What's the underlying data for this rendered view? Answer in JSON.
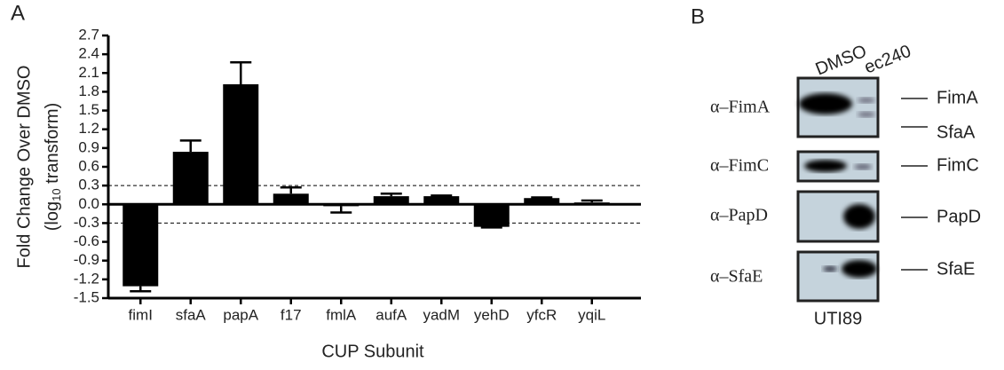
{
  "panel_a_label": "A",
  "chart_data": {
    "type": "bar",
    "y_label": "Fold Change Over  DMSO",
    "y_label_2": [
      "(log",
      "10",
      " transform)"
    ],
    "x_label": "CUP Subunit",
    "categories": [
      "fimI",
      "sfaA",
      "papA",
      "f17",
      "fmlA",
      "aufA",
      "yadM",
      "yehD",
      "yfcR",
      "yqiL"
    ],
    "values": [
      -1.31,
      0.84,
      1.92,
      0.17,
      -0.03,
      0.13,
      0.13,
      -0.36,
      0.1,
      0.03
    ],
    "errors": [
      0.08,
      0.18,
      0.35,
      0.1,
      0.1,
      0.04,
      0.01,
      0.01,
      0.01,
      0.03
    ],
    "color": "#000000",
    "ylim": [
      -1.5,
      2.7
    ],
    "yticks": [
      2.7,
      2.4,
      2.1,
      1.8,
      1.5,
      1.2,
      0.9,
      0.6,
      0.3,
      {
        "value": 0,
        "label": "0.0"
      },
      -0.3,
      -0.6,
      -0.9,
      -1.2,
      -1.5
    ],
    "reference_lines": [
      0.3,
      -0.3
    ],
    "grid": false
  },
  "blot": {
    "panel_label": "B",
    "columns": [
      "DMSO",
      "ec240"
    ],
    "rows": [
      "α–FimA",
      "α–FimC",
      "α–PapD",
      "α–SfaE"
    ],
    "bands": [
      "FimA",
      "SfaA",
      "FimC",
      "PapD",
      "SfaE"
    ],
    "strain": "UTI89"
  }
}
